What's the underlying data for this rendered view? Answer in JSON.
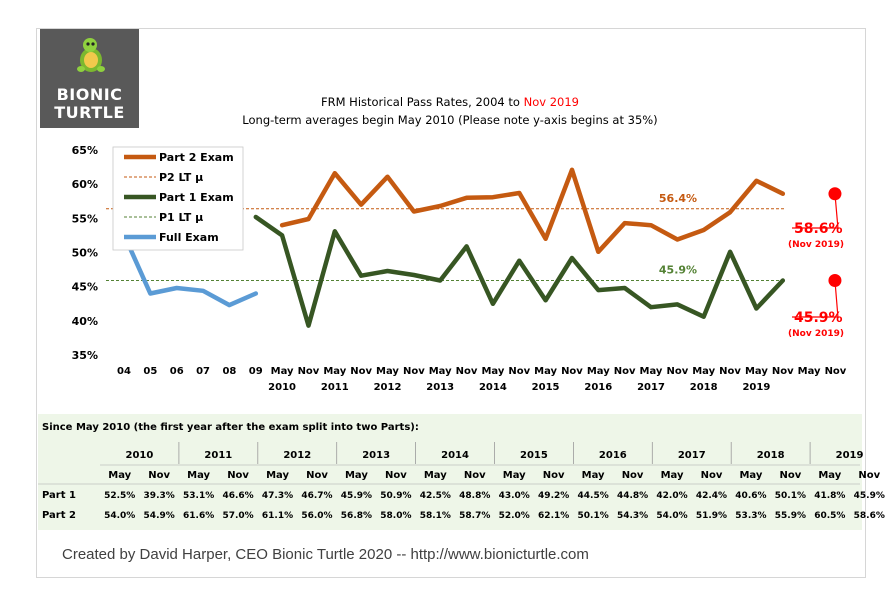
{
  "brand": {
    "line1": "BIONIC",
    "line2": "TURTLE",
    "mascot_icon": "turtle-icon"
  },
  "chart_data": {
    "type": "line",
    "title": {
      "prefix": "FRM Historical Pass Rates, 2004 to ",
      "highlight": "Nov 2019",
      "highlight_color": "#ff0000"
    },
    "subtitle": "Long-term averages begin May 2010 (Please note y-axis begins at 35%)",
    "ylim": [
      35,
      65
    ],
    "yticks": [
      "65%",
      "60%",
      "55%",
      "50%",
      "45%",
      "40%",
      "35%"
    ],
    "ytick_values": [
      65,
      60,
      55,
      50,
      45,
      40,
      35
    ],
    "x_top_labels": [
      "04",
      "05",
      "06",
      "07",
      "08",
      "09",
      "May",
      "Nov",
      "May",
      "Nov",
      "May",
      "Nov",
      "May",
      "Nov",
      "May",
      "Nov",
      "May",
      "Nov",
      "May",
      "Nov",
      "May",
      "Nov",
      "May",
      "Nov",
      "May",
      "Nov",
      "May",
      "Nov"
    ],
    "x_year_labels": [
      {
        "label": "2010",
        "index": 6
      },
      {
        "label": "2011",
        "index": 8
      },
      {
        "label": "2012",
        "index": 10
      },
      {
        "label": "2013",
        "index": 12
      },
      {
        "label": "2014",
        "index": 14
      },
      {
        "label": "2015",
        "index": 16
      },
      {
        "label": "2016",
        "index": 18
      },
      {
        "label": "2017",
        "index": 20
      },
      {
        "label": "2018",
        "index": 22
      },
      {
        "label": "2019",
        "index": 24
      }
    ],
    "series": [
      {
        "name": "Full Exam",
        "color": "#5b9bd5",
        "start_index": 0,
        "values": [
          52.6,
          44.0,
          44.8,
          44.4,
          42.3,
          44.0
        ]
      },
      {
        "name": "Part 1 Exam",
        "color": "#375623",
        "start_index": 5,
        "values": [
          55.2,
          52.5,
          39.3,
          53.1,
          46.6,
          47.3,
          46.7,
          45.9,
          50.9,
          42.5,
          48.8,
          43.0,
          49.2,
          44.5,
          44.8,
          42.0,
          42.4,
          40.6,
          50.1,
          41.8,
          45.9
        ]
      },
      {
        "name": "Part 2 Exam",
        "color": "#c55a11",
        "start_index": 6,
        "values": [
          54.0,
          54.9,
          61.6,
          57.0,
          61.1,
          56.0,
          56.8,
          58.0,
          58.1,
          58.7,
          52.0,
          62.1,
          50.1,
          54.3,
          54.0,
          51.9,
          53.3,
          55.9,
          60.5,
          58.6
        ]
      }
    ],
    "reference_lines": [
      {
        "name": "P2 LT µ",
        "value": 56.4,
        "label": "56.4%",
        "color": "#c55a11"
      },
      {
        "name": "P1 LT µ",
        "value": 45.9,
        "label": "45.9%",
        "color": "#548235"
      }
    ],
    "legend": [
      "Part 2 Exam",
      "P2 LT µ",
      "Part 1 Exam",
      "P1 LT µ",
      "Full Exam"
    ],
    "legend_placement": "top-left",
    "callouts": [
      {
        "value_label": "58.6%",
        "sub_label": "(Nov 2019)",
        "value": 58.6,
        "color": "#ff0000"
      },
      {
        "value_label": "45.9%",
        "sub_label": "(Nov 2019)",
        "value": 45.9,
        "color": "#ff0000"
      }
    ]
  },
  "table": {
    "heading": "Since May 2010 (the first year after the exam split into two Parts):",
    "years": [
      "2010",
      "2011",
      "2012",
      "2013",
      "2014",
      "2015",
      "2016",
      "2017",
      "2018",
      "2019"
    ],
    "sessions": [
      "May",
      "Nov"
    ],
    "rows": [
      {
        "label": "Part 1",
        "values": [
          "52.5%",
          "39.3%",
          "53.1%",
          "46.6%",
          "47.3%",
          "46.7%",
          "45.9%",
          "50.9%",
          "42.5%",
          "48.8%",
          "43.0%",
          "49.2%",
          "44.5%",
          "44.8%",
          "42.0%",
          "42.4%",
          "40.6%",
          "50.1%",
          "41.8%",
          "45.9%"
        ]
      },
      {
        "label": "Part 2",
        "values": [
          "54.0%",
          "54.9%",
          "61.6%",
          "57.0%",
          "61.1%",
          "56.0%",
          "56.8%",
          "58.0%",
          "58.1%",
          "58.7%",
          "52.0%",
          "62.1%",
          "50.1%",
          "54.3%",
          "54.0%",
          "51.9%",
          "53.3%",
          "55.9%",
          "60.5%",
          "58.6%"
        ]
      }
    ]
  },
  "footer": "Created by David Harper, CEO Bionic Turtle 2020 -- http://www.bionicturtle.com"
}
